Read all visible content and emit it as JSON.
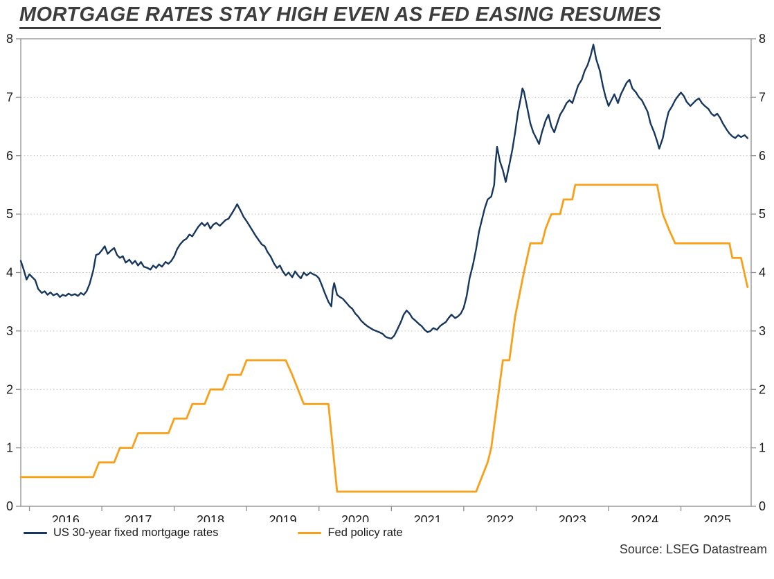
{
  "title": "MORTGAGE RATES STAY HIGH EVEN AS FED EASING RESUMES",
  "source": "Source: LSEG Datastream",
  "colors": {
    "title": "#3d3d3d",
    "frame": "#8f8f8f",
    "grid": "#bdbdbd",
    "tick_label": "#1a1a1a",
    "mortgage_line": "#17365d",
    "fed_line": "#f8a019"
  },
  "chart_data": {
    "type": "line",
    "title": "MORTGAGE RATES STAY HIGH EVEN AS FED EASING RESUMES",
    "source": "Source: LSEG Datastream",
    "xlabel": "",
    "ylabel": "",
    "x_range": [
      2015.88,
      2025.97
    ],
    "ylim": [
      0,
      8
    ],
    "y_ticks": [
      0,
      1,
      2,
      3,
      4,
      5,
      6,
      7,
      8
    ],
    "x_tick_years": [
      2016,
      2017,
      2018,
      2019,
      2020,
      2021,
      2022,
      2023,
      2024,
      2025
    ],
    "grid": "horizontal-dotted",
    "y_axis_sides": [
      "left",
      "right"
    ],
    "legend_position": "bottom-left",
    "series": [
      {
        "id": "mortgage",
        "name": "US 30-year fixed mortgage rates",
        "color": "#17365d",
        "width": 2.4,
        "points": [
          [
            2015.88,
            4.2
          ],
          [
            2015.92,
            4.05
          ],
          [
            2015.96,
            3.88
          ],
          [
            2016.0,
            3.97
          ],
          [
            2016.04,
            3.92
          ],
          [
            2016.08,
            3.87
          ],
          [
            2016.12,
            3.72
          ],
          [
            2016.17,
            3.65
          ],
          [
            2016.21,
            3.68
          ],
          [
            2016.25,
            3.62
          ],
          [
            2016.29,
            3.66
          ],
          [
            2016.33,
            3.61
          ],
          [
            2016.38,
            3.64
          ],
          [
            2016.42,
            3.58
          ],
          [
            2016.46,
            3.62
          ],
          [
            2016.5,
            3.6
          ],
          [
            2016.54,
            3.64
          ],
          [
            2016.58,
            3.61
          ],
          [
            2016.63,
            3.63
          ],
          [
            2016.67,
            3.6
          ],
          [
            2016.71,
            3.65
          ],
          [
            2016.75,
            3.62
          ],
          [
            2016.79,
            3.68
          ],
          [
            2016.83,
            3.8
          ],
          [
            2016.88,
            4.03
          ],
          [
            2016.92,
            4.3
          ],
          [
            2016.96,
            4.32
          ],
          [
            2017.0,
            4.38
          ],
          [
            2017.04,
            4.45
          ],
          [
            2017.08,
            4.32
          ],
          [
            2017.13,
            4.38
          ],
          [
            2017.17,
            4.42
          ],
          [
            2017.21,
            4.3
          ],
          [
            2017.25,
            4.25
          ],
          [
            2017.29,
            4.28
          ],
          [
            2017.33,
            4.17
          ],
          [
            2017.38,
            4.22
          ],
          [
            2017.42,
            4.15
          ],
          [
            2017.46,
            4.2
          ],
          [
            2017.5,
            4.12
          ],
          [
            2017.54,
            4.18
          ],
          [
            2017.58,
            4.1
          ],
          [
            2017.63,
            4.08
          ],
          [
            2017.67,
            4.05
          ],
          [
            2017.71,
            4.12
          ],
          [
            2017.75,
            4.08
          ],
          [
            2017.79,
            4.14
          ],
          [
            2017.83,
            4.1
          ],
          [
            2017.88,
            4.18
          ],
          [
            2017.92,
            4.15
          ],
          [
            2017.96,
            4.2
          ],
          [
            2018.0,
            4.28
          ],
          [
            2018.04,
            4.4
          ],
          [
            2018.08,
            4.48
          ],
          [
            2018.13,
            4.55
          ],
          [
            2018.17,
            4.58
          ],
          [
            2018.21,
            4.65
          ],
          [
            2018.25,
            4.62
          ],
          [
            2018.29,
            4.7
          ],
          [
            2018.33,
            4.78
          ],
          [
            2018.38,
            4.85
          ],
          [
            2018.42,
            4.8
          ],
          [
            2018.46,
            4.85
          ],
          [
            2018.5,
            4.75
          ],
          [
            2018.54,
            4.82
          ],
          [
            2018.58,
            4.85
          ],
          [
            2018.63,
            4.8
          ],
          [
            2018.67,
            4.85
          ],
          [
            2018.71,
            4.9
          ],
          [
            2018.75,
            4.92
          ],
          [
            2018.79,
            5.0
          ],
          [
            2018.83,
            5.08
          ],
          [
            2018.87,
            5.17
          ],
          [
            2018.92,
            5.05
          ],
          [
            2018.96,
            4.95
          ],
          [
            2019.0,
            4.88
          ],
          [
            2019.04,
            4.8
          ],
          [
            2019.08,
            4.72
          ],
          [
            2019.13,
            4.62
          ],
          [
            2019.17,
            4.55
          ],
          [
            2019.21,
            4.48
          ],
          [
            2019.25,
            4.45
          ],
          [
            2019.29,
            4.35
          ],
          [
            2019.33,
            4.28
          ],
          [
            2019.38,
            4.15
          ],
          [
            2019.42,
            4.08
          ],
          [
            2019.46,
            4.12
          ],
          [
            2019.5,
            4.02
          ],
          [
            2019.54,
            3.95
          ],
          [
            2019.58,
            4.0
          ],
          [
            2019.63,
            3.92
          ],
          [
            2019.67,
            4.02
          ],
          [
            2019.71,
            3.95
          ],
          [
            2019.75,
            3.9
          ],
          [
            2019.79,
            4.0
          ],
          [
            2019.83,
            3.95
          ],
          [
            2019.88,
            4.0
          ],
          [
            2019.92,
            3.97
          ],
          [
            2019.96,
            3.95
          ],
          [
            2020.0,
            3.9
          ],
          [
            2020.04,
            3.78
          ],
          [
            2020.08,
            3.65
          ],
          [
            2020.13,
            3.5
          ],
          [
            2020.17,
            3.42
          ],
          [
            2020.19,
            3.7
          ],
          [
            2020.21,
            3.82
          ],
          [
            2020.25,
            3.62
          ],
          [
            2020.29,
            3.58
          ],
          [
            2020.33,
            3.55
          ],
          [
            2020.38,
            3.48
          ],
          [
            2020.42,
            3.42
          ],
          [
            2020.46,
            3.38
          ],
          [
            2020.5,
            3.3
          ],
          [
            2020.54,
            3.25
          ],
          [
            2020.58,
            3.18
          ],
          [
            2020.63,
            3.12
          ],
          [
            2020.67,
            3.08
          ],
          [
            2020.71,
            3.05
          ],
          [
            2020.75,
            3.02
          ],
          [
            2020.79,
            3.0
          ],
          [
            2020.83,
            2.98
          ],
          [
            2020.88,
            2.95
          ],
          [
            2020.92,
            2.9
          ],
          [
            2020.96,
            2.88
          ],
          [
            2021.0,
            2.87
          ],
          [
            2021.04,
            2.92
          ],
          [
            2021.08,
            3.02
          ],
          [
            2021.13,
            3.15
          ],
          [
            2021.17,
            3.28
          ],
          [
            2021.21,
            3.35
          ],
          [
            2021.25,
            3.3
          ],
          [
            2021.29,
            3.22
          ],
          [
            2021.33,
            3.18
          ],
          [
            2021.38,
            3.12
          ],
          [
            2021.42,
            3.08
          ],
          [
            2021.46,
            3.02
          ],
          [
            2021.5,
            2.98
          ],
          [
            2021.54,
            3.0
          ],
          [
            2021.58,
            3.05
          ],
          [
            2021.63,
            3.02
          ],
          [
            2021.67,
            3.08
          ],
          [
            2021.71,
            3.12
          ],
          [
            2021.75,
            3.15
          ],
          [
            2021.79,
            3.22
          ],
          [
            2021.83,
            3.28
          ],
          [
            2021.88,
            3.22
          ],
          [
            2021.92,
            3.25
          ],
          [
            2021.96,
            3.3
          ],
          [
            2022.0,
            3.4
          ],
          [
            2022.04,
            3.6
          ],
          [
            2022.08,
            3.9
          ],
          [
            2022.13,
            4.15
          ],
          [
            2022.17,
            4.4
          ],
          [
            2022.21,
            4.7
          ],
          [
            2022.25,
            4.9
          ],
          [
            2022.29,
            5.1
          ],
          [
            2022.33,
            5.25
          ],
          [
            2022.38,
            5.3
          ],
          [
            2022.42,
            5.5
          ],
          [
            2022.44,
            5.9
          ],
          [
            2022.46,
            6.15
          ],
          [
            2022.5,
            5.9
          ],
          [
            2022.54,
            5.75
          ],
          [
            2022.58,
            5.55
          ],
          [
            2022.63,
            5.85
          ],
          [
            2022.67,
            6.1
          ],
          [
            2022.71,
            6.4
          ],
          [
            2022.75,
            6.75
          ],
          [
            2022.79,
            7.0
          ],
          [
            2022.81,
            7.15
          ],
          [
            2022.83,
            7.1
          ],
          [
            2022.88,
            6.8
          ],
          [
            2022.92,
            6.55
          ],
          [
            2022.96,
            6.4
          ],
          [
            2023.0,
            6.3
          ],
          [
            2023.04,
            6.2
          ],
          [
            2023.08,
            6.4
          ],
          [
            2023.13,
            6.6
          ],
          [
            2023.17,
            6.7
          ],
          [
            2023.21,
            6.5
          ],
          [
            2023.25,
            6.4
          ],
          [
            2023.29,
            6.55
          ],
          [
            2023.33,
            6.7
          ],
          [
            2023.38,
            6.8
          ],
          [
            2023.42,
            6.9
          ],
          [
            2023.46,
            6.95
          ],
          [
            2023.5,
            6.9
          ],
          [
            2023.54,
            7.05
          ],
          [
            2023.58,
            7.2
          ],
          [
            2023.63,
            7.3
          ],
          [
            2023.67,
            7.45
          ],
          [
            2023.71,
            7.55
          ],
          [
            2023.75,
            7.7
          ],
          [
            2023.79,
            7.9
          ],
          [
            2023.83,
            7.65
          ],
          [
            2023.88,
            7.45
          ],
          [
            2023.92,
            7.2
          ],
          [
            2023.96,
            7.0
          ],
          [
            2024.0,
            6.85
          ],
          [
            2024.04,
            6.95
          ],
          [
            2024.08,
            7.05
          ],
          [
            2024.13,
            6.9
          ],
          [
            2024.17,
            7.05
          ],
          [
            2024.21,
            7.15
          ],
          [
            2024.25,
            7.25
          ],
          [
            2024.29,
            7.3
          ],
          [
            2024.33,
            7.15
          ],
          [
            2024.38,
            7.08
          ],
          [
            2024.42,
            7.0
          ],
          [
            2024.46,
            6.95
          ],
          [
            2024.5,
            6.85
          ],
          [
            2024.54,
            6.75
          ],
          [
            2024.58,
            6.55
          ],
          [
            2024.63,
            6.4
          ],
          [
            2024.67,
            6.25
          ],
          [
            2024.7,
            6.12
          ],
          [
            2024.75,
            6.3
          ],
          [
            2024.79,
            6.55
          ],
          [
            2024.83,
            6.75
          ],
          [
            2024.88,
            6.85
          ],
          [
            2024.92,
            6.95
          ],
          [
            2024.96,
            7.02
          ],
          [
            2025.0,
            7.08
          ],
          [
            2025.04,
            7.02
          ],
          [
            2025.08,
            6.92
          ],
          [
            2025.13,
            6.85
          ],
          [
            2025.17,
            6.9
          ],
          [
            2025.21,
            6.95
          ],
          [
            2025.25,
            6.98
          ],
          [
            2025.29,
            6.9
          ],
          [
            2025.33,
            6.85
          ],
          [
            2025.38,
            6.8
          ],
          [
            2025.42,
            6.72
          ],
          [
            2025.46,
            6.68
          ],
          [
            2025.5,
            6.72
          ],
          [
            2025.54,
            6.65
          ],
          [
            2025.58,
            6.55
          ],
          [
            2025.63,
            6.45
          ],
          [
            2025.67,
            6.38
          ],
          [
            2025.71,
            6.33
          ],
          [
            2025.75,
            6.3
          ],
          [
            2025.79,
            6.35
          ],
          [
            2025.83,
            6.32
          ],
          [
            2025.88,
            6.35
          ],
          [
            2025.92,
            6.3
          ]
        ]
      },
      {
        "id": "fed",
        "name": "Fed policy rate",
        "color": "#f8a019",
        "width": 2.8,
        "points": [
          [
            2015.88,
            0.5
          ],
          [
            2016.88,
            0.5
          ],
          [
            2016.96,
            0.75
          ],
          [
            2017.17,
            0.75
          ],
          [
            2017.25,
            1.0
          ],
          [
            2017.42,
            1.0
          ],
          [
            2017.5,
            1.25
          ],
          [
            2017.92,
            1.25
          ],
          [
            2018.0,
            1.5
          ],
          [
            2018.17,
            1.5
          ],
          [
            2018.25,
            1.75
          ],
          [
            2018.42,
            1.75
          ],
          [
            2018.5,
            2.0
          ],
          [
            2018.67,
            2.0
          ],
          [
            2018.75,
            2.25
          ],
          [
            2018.92,
            2.25
          ],
          [
            2019.0,
            2.5
          ],
          [
            2019.54,
            2.5
          ],
          [
            2019.63,
            2.25
          ],
          [
            2019.71,
            2.0
          ],
          [
            2019.79,
            1.75
          ],
          [
            2020.13,
            1.75
          ],
          [
            2020.25,
            0.25
          ],
          [
            2022.17,
            0.25
          ],
          [
            2022.25,
            0.5
          ],
          [
            2022.33,
            0.75
          ],
          [
            2022.38,
            1.0
          ],
          [
            2022.46,
            1.75
          ],
          [
            2022.54,
            2.5
          ],
          [
            2022.63,
            2.5
          ],
          [
            2022.71,
            3.25
          ],
          [
            2022.83,
            4.0
          ],
          [
            2022.92,
            4.5
          ],
          [
            2023.08,
            4.5
          ],
          [
            2023.13,
            4.75
          ],
          [
            2023.21,
            5.0
          ],
          [
            2023.33,
            5.0
          ],
          [
            2023.38,
            5.25
          ],
          [
            2023.5,
            5.25
          ],
          [
            2023.54,
            5.5
          ],
          [
            2024.67,
            5.5
          ],
          [
            2024.75,
            5.0
          ],
          [
            2024.83,
            4.75
          ],
          [
            2024.92,
            4.5
          ],
          [
            2025.67,
            4.5
          ],
          [
            2025.71,
            4.25
          ],
          [
            2025.83,
            4.25
          ],
          [
            2025.92,
            3.75
          ]
        ]
      }
    ]
  }
}
